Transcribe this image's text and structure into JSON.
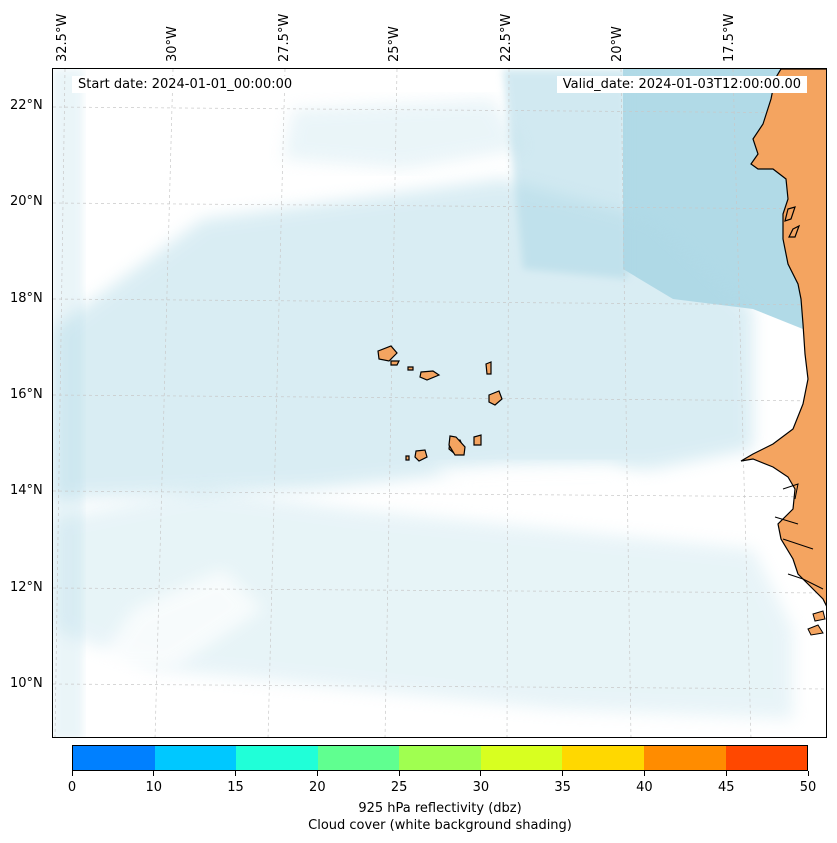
{
  "map": {
    "lon_labels": [
      "32.5°W",
      "30°W",
      "27.5°W",
      "25°W",
      "22.5°W",
      "20°W",
      "17.5°W"
    ],
    "lat_labels": [
      "22°N",
      "20°N",
      "18°N",
      "16°N",
      "14°N",
      "12°N",
      "10°N"
    ],
    "start_date": "Start date: 2024-01-01_00:00:00",
    "valid_date": "Valid_date: 2024-01-03T12:00:00.00",
    "colors": {
      "ocean_cloud": "#add8e6",
      "land": "#f4a460",
      "coast": "#000000"
    }
  },
  "colorbar": {
    "ticks": [
      "0",
      "10",
      "15",
      "20",
      "25",
      "30",
      "35",
      "40",
      "45",
      "50"
    ],
    "colors": [
      "#0080ff",
      "#00c8ff",
      "#20ffd8",
      "#60ff90",
      "#a0ff50",
      "#d8ff20",
      "#ffd800",
      "#ff8c00",
      "#ff4800"
    ],
    "label_line1": "925 hPa reflectivity (dbz)",
    "label_line2": "Cloud cover (white background shading)"
  }
}
